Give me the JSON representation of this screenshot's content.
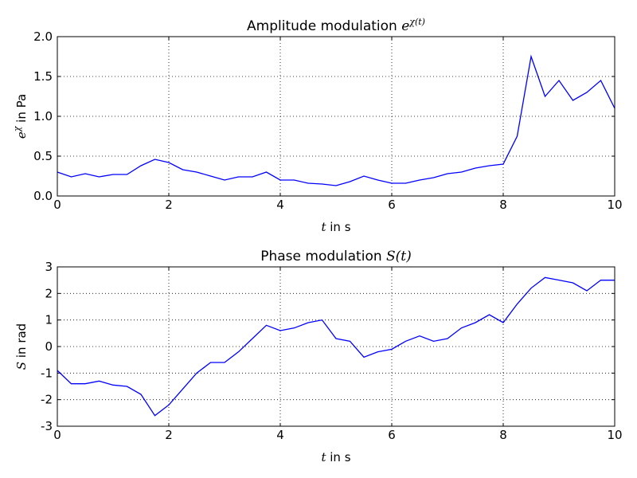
{
  "chart_data": [
    {
      "type": "line",
      "title": {
        "text": "Amplitude modulation",
        "base": "e",
        "sup": "χ(t)"
      },
      "xlabel": {
        "var": "t",
        "text": "in s"
      },
      "ylabel": {
        "base": "e",
        "sup": "χ",
        "text": "in Pa"
      },
      "x": [
        0,
        0.25,
        0.5,
        0.75,
        1,
        1.25,
        1.5,
        1.75,
        2,
        2.25,
        2.5,
        2.75,
        3,
        3.25,
        3.5,
        3.75,
        4,
        4.25,
        4.5,
        4.75,
        5,
        5.25,
        5.5,
        5.75,
        6,
        6.25,
        6.5,
        6.75,
        7,
        7.25,
        7.5,
        7.75,
        8,
        8.25,
        8.5,
        8.75,
        9,
        9.25,
        9.5,
        9.75,
        10
      ],
      "series": [
        {
          "color": "#0000ff",
          "values": [
            0.3,
            0.24,
            0.28,
            0.24,
            0.27,
            0.27,
            0.38,
            0.46,
            0.42,
            0.33,
            0.3,
            0.25,
            0.2,
            0.24,
            0.24,
            0.3,
            0.2,
            0.2,
            0.16,
            0.15,
            0.13,
            0.18,
            0.25,
            0.2,
            0.16,
            0.16,
            0.2,
            0.23,
            0.28,
            0.3,
            0.35,
            0.38,
            0.4,
            0.75,
            1.75,
            1.25,
            1.45,
            1.2,
            1.3,
            1.45,
            1.1
          ]
        }
      ],
      "xlim": [
        0,
        10
      ],
      "xticks": [
        0,
        2,
        4,
        6,
        8,
        10
      ],
      "ylim": [
        0,
        2
      ],
      "yticks": [
        {
          "value": 0,
          "label": "0.0"
        },
        0.5,
        {
          "value": 1,
          "label": "1.0"
        },
        1.5,
        {
          "value": 2,
          "label": "2.0"
        }
      ],
      "grid": true
    },
    {
      "type": "line",
      "title": {
        "text": "Phase modulation",
        "math": "S(t)"
      },
      "xlabel": {
        "var": "t",
        "text": "in s"
      },
      "ylabel": {
        "var": "S",
        "text": "in rad"
      },
      "x": [
        0,
        0.25,
        0.5,
        0.75,
        1,
        1.25,
        1.5,
        1.75,
        2,
        2.25,
        2.5,
        2.75,
        3,
        3.25,
        3.5,
        3.75,
        4,
        4.25,
        4.5,
        4.75,
        5,
        5.25,
        5.5,
        5.75,
        6,
        6.25,
        6.5,
        6.75,
        7,
        7.25,
        7.5,
        7.75,
        8,
        8.25,
        8.5,
        8.75,
        9,
        9.25,
        9.5,
        9.75,
        10
      ],
      "series": [
        {
          "color": "#0000ff",
          "values": [
            -0.9,
            -1.4,
            -1.4,
            -1.3,
            -1.45,
            -1.5,
            -1.8,
            -2.6,
            -2.2,
            -1.6,
            -1.0,
            -0.6,
            -0.6,
            -0.2,
            0.3,
            0.8,
            0.6,
            0.7,
            0.9,
            1.0,
            0.3,
            0.2,
            -0.4,
            -0.2,
            -0.1,
            0.2,
            0.4,
            0.2,
            0.3,
            0.7,
            0.9,
            1.2,
            0.9,
            1.6,
            2.2,
            2.6,
            2.5,
            2.4,
            2.1,
            2.5,
            2.5
          ]
        }
      ],
      "xlim": [
        0,
        10
      ],
      "xticks": [
        0,
        2,
        4,
        6,
        8,
        10
      ],
      "ylim": [
        -3,
        3
      ],
      "yticks": [
        -3,
        -2,
        -1,
        0,
        1,
        2,
        3
      ],
      "grid": true
    }
  ]
}
